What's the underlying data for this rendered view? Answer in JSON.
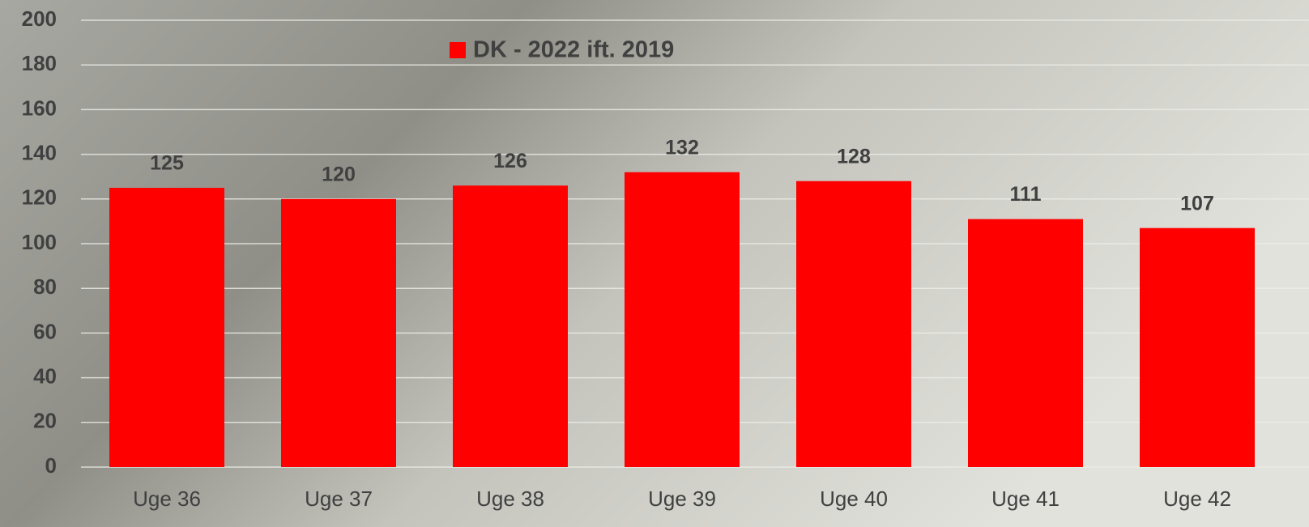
{
  "chart_data": {
    "type": "bar",
    "categories": [
      "Uge 36",
      "Uge 37",
      "Uge 38",
      "Uge 39",
      "Uge 40",
      "Uge 41",
      "Uge 42"
    ],
    "series": [
      {
        "name": "DK - 2022 ift. 2019",
        "color": "#ff0000",
        "values": [
          125,
          120,
          126,
          132,
          128,
          111,
          107
        ]
      }
    ],
    "ylim": [
      0,
      200
    ],
    "yticks": [
      0,
      20,
      40,
      60,
      80,
      100,
      120,
      140,
      160,
      180,
      200
    ],
    "grid": true,
    "legend": "top"
  }
}
